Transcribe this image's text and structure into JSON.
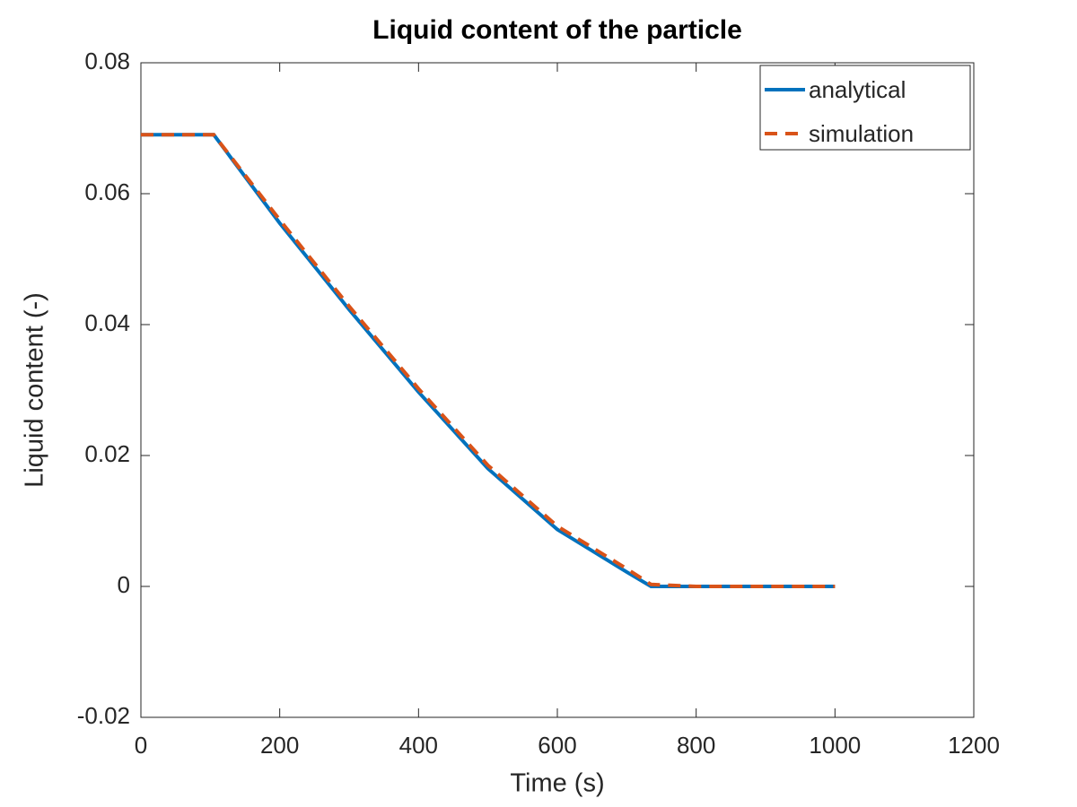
{
  "chart_data": {
    "type": "line",
    "title": "Liquid content of the particle",
    "xlabel": "Time (s)",
    "ylabel": "Liquid content (-)",
    "x": [
      0,
      105,
      200,
      300,
      400,
      500,
      600,
      700,
      735,
      800,
      900,
      1000
    ],
    "series": [
      {
        "name": "analytical",
        "color": "#0072bd",
        "linestyle": "solid",
        "values": [
          0.069,
          0.069,
          0.0555,
          0.0423,
          0.0297,
          0.018,
          0.0087,
          0.0022,
          0,
          0,
          0,
          0
        ]
      },
      {
        "name": "simulation",
        "color": "#d95319",
        "linestyle": "dashed",
        "values": [
          0.069,
          0.069,
          0.056,
          0.0428,
          0.0302,
          0.0185,
          0.0092,
          0.0027,
          0.0003,
          0,
          0,
          0
        ]
      }
    ],
    "xlim": [
      0,
      1200
    ],
    "xticks": [
      0,
      200,
      400,
      600,
      800,
      1000,
      1200
    ],
    "ylim": [
      -0.02,
      0.08
    ],
    "yticks": [
      -0.02,
      0,
      0.02,
      0.04,
      0.06,
      0.08
    ],
    "legend": "northeast",
    "grid": false
  }
}
